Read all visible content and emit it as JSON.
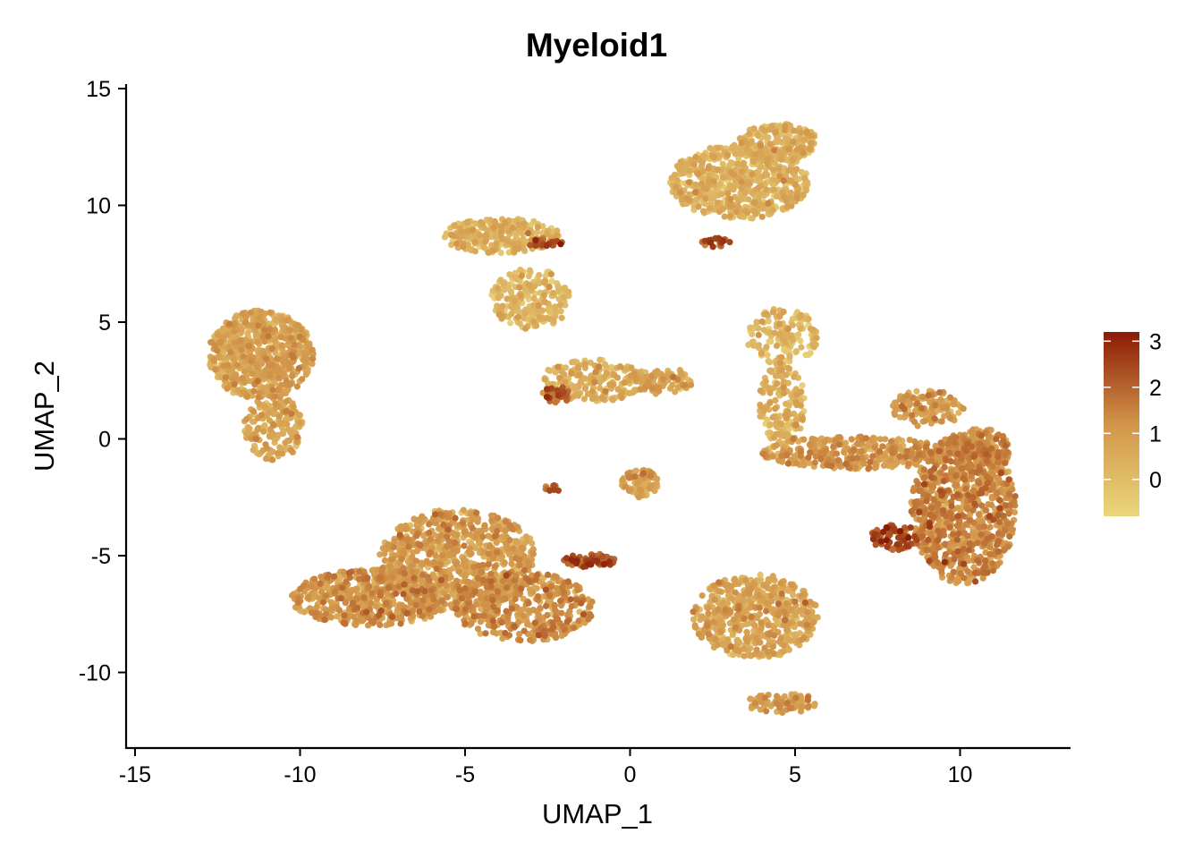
{
  "chart_data": {
    "type": "scatter",
    "title": "Myeloid1",
    "xlabel": "UMAP_1",
    "ylabel": "UMAP_2",
    "xlim": [
      -15.2,
      13.2
    ],
    "ylim": [
      -13.2,
      15.2
    ],
    "x_ticks": [
      -15,
      -10,
      -5,
      0,
      5,
      10
    ],
    "y_ticks": [
      15,
      10,
      5,
      0,
      -5,
      -10
    ],
    "x_tick_labels": [
      "-15",
      "-10",
      "-5",
      "0",
      "5",
      "10"
    ],
    "y_tick_labels": [
      "15",
      "10",
      "5",
      "0",
      "-5",
      "-10"
    ],
    "grid": false,
    "legend": {
      "position": "right",
      "type": "colorbar",
      "range": [
        -0.8,
        3.2
      ],
      "ticks": [
        0,
        1,
        2,
        3
      ],
      "tick_labels": [
        "0",
        "1",
        "2",
        "3"
      ],
      "color_low": "#ead77c",
      "color_mid": "#d2954a",
      "color_high": "#8b1a04"
    },
    "clusters": [
      {
        "cx": -11.2,
        "cy": 3.6,
        "rx": 1.6,
        "ry": 1.9,
        "n": 700,
        "expr": 0.6
      },
      {
        "cx": -10.8,
        "cy": 0.5,
        "rx": 0.9,
        "ry": 1.4,
        "n": 180,
        "expr": 0.5
      },
      {
        "cx": -3.9,
        "cy": 8.7,
        "rx": 1.8,
        "ry": 0.75,
        "n": 260,
        "expr": 0.2
      },
      {
        "cx": -3.0,
        "cy": 6.0,
        "rx": 1.2,
        "ry": 1.3,
        "n": 220,
        "expr": 0.1
      },
      {
        "cx": -1.1,
        "cy": 2.5,
        "rx": 1.6,
        "ry": 0.9,
        "n": 200,
        "expr": 0.3
      },
      {
        "cx": 1.0,
        "cy": 2.5,
        "rx": 0.9,
        "ry": 0.6,
        "n": 90,
        "expr": 0.6
      },
      {
        "cx": -2.2,
        "cy": 1.9,
        "rx": 0.45,
        "ry": 0.35,
        "n": 40,
        "expr": 1.9
      },
      {
        "cx": -2.6,
        "cy": 8.4,
        "rx": 0.6,
        "ry": 0.18,
        "n": 25,
        "expr": 2.2
      },
      {
        "cx": 3.3,
        "cy": 11.0,
        "rx": 2.1,
        "ry": 1.6,
        "n": 650,
        "expr": 0.2
      },
      {
        "cx": 4.5,
        "cy": 12.7,
        "rx": 1.2,
        "ry": 0.8,
        "n": 200,
        "expr": 0.2
      },
      {
        "cx": 2.6,
        "cy": 8.4,
        "rx": 0.45,
        "ry": 0.2,
        "n": 25,
        "expr": 2.1
      },
      {
        "cx": 0.3,
        "cy": -1.9,
        "rx": 0.55,
        "ry": 0.6,
        "n": 90,
        "expr": 0.7
      },
      {
        "cx": -2.3,
        "cy": -2.1,
        "rx": 0.3,
        "ry": 0.15,
        "n": 10,
        "expr": 1.8
      },
      {
        "cx": -7.8,
        "cy": -6.8,
        "rx": 2.5,
        "ry": 1.2,
        "n": 550,
        "expr": 0.9
      },
      {
        "cx": -5.2,
        "cy": -5.2,
        "rx": 2.4,
        "ry": 2.2,
        "n": 800,
        "expr": 0.8
      },
      {
        "cx": -3.2,
        "cy": -7.2,
        "rx": 2.1,
        "ry": 1.5,
        "n": 450,
        "expr": 1.1
      },
      {
        "cx": -1.2,
        "cy": -5.2,
        "rx": 0.8,
        "ry": 0.3,
        "n": 50,
        "expr": 2.3
      },
      {
        "cx": 3.8,
        "cy": -7.6,
        "rx": 1.9,
        "ry": 1.8,
        "n": 550,
        "expr": 0.6
      },
      {
        "cx": 4.6,
        "cy": -11.3,
        "rx": 1.1,
        "ry": 0.45,
        "n": 80,
        "expr": 0.8
      },
      {
        "cx": 4.6,
        "cy": 4.4,
        "rx": 1.1,
        "ry": 1.2,
        "n": 150,
        "expr": 0.1
      },
      {
        "cx": 4.6,
        "cy": 1.5,
        "rx": 0.7,
        "ry": 1.8,
        "n": 160,
        "expr": 0.3
      },
      {
        "cx": 6.8,
        "cy": -0.6,
        "rx": 2.8,
        "ry": 0.7,
        "n": 350,
        "expr": 0.9
      },
      {
        "cx": 10.1,
        "cy": -3.0,
        "rx": 1.6,
        "ry": 3.2,
        "n": 900,
        "expr": 1.2
      },
      {
        "cx": 10.7,
        "cy": -0.5,
        "rx": 0.8,
        "ry": 1.0,
        "n": 200,
        "expr": 1.0
      },
      {
        "cx": 9.0,
        "cy": 1.3,
        "rx": 1.1,
        "ry": 0.8,
        "n": 120,
        "expr": 0.9
      },
      {
        "cx": 8.0,
        "cy": -4.2,
        "rx": 0.7,
        "ry": 0.6,
        "n": 80,
        "expr": 2.2
      }
    ]
  }
}
